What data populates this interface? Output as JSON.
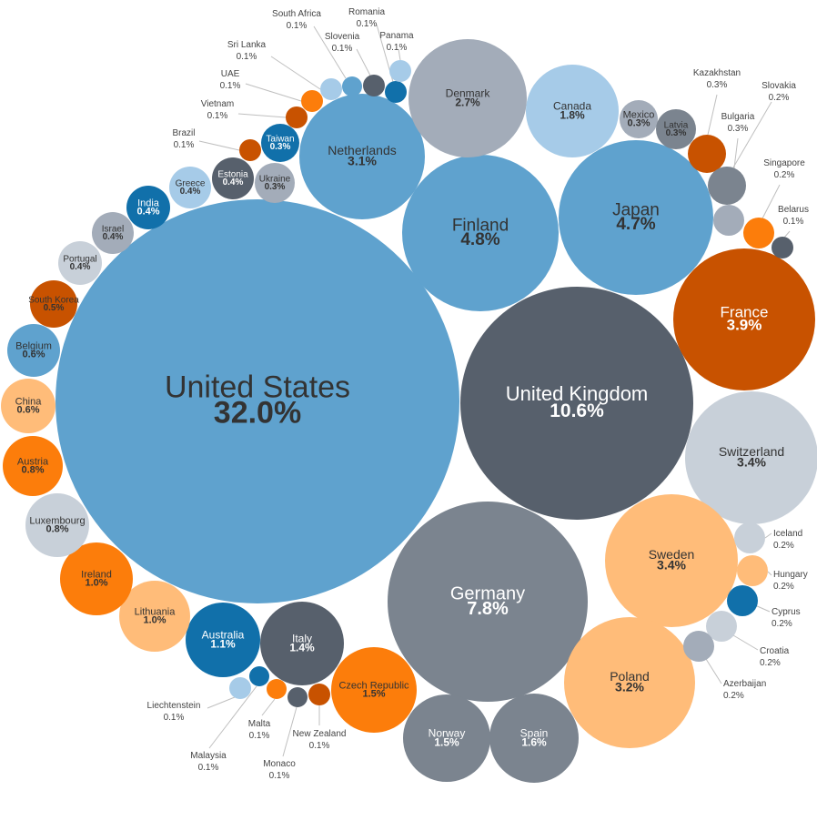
{
  "chart_data": {
    "type": "bubble",
    "title": "",
    "unit": "%",
    "palette": {
      "light_blue": "#a6cbe8",
      "mid_blue": "#5fa2ce",
      "dark_blue": "#1170aa",
      "slate": "#57606c",
      "gray": "#7b848f",
      "light_gray": "#c8d0d9",
      "mid_gray": "#a3acb9",
      "dark_orange": "#c85200",
      "orange": "#fc7d0b",
      "peach": "#ffbc79"
    },
    "bubbles": [
      {
        "name": "United States",
        "value": "32.0%",
        "color": "mid_blue"
      },
      {
        "name": "United Kingdom",
        "value": "10.6%",
        "color": "slate"
      },
      {
        "name": "Germany",
        "value": "7.8%",
        "color": "gray"
      },
      {
        "name": "Finland",
        "value": "4.8%",
        "color": "mid_blue"
      },
      {
        "name": "Japan",
        "value": "4.7%",
        "color": "mid_blue"
      },
      {
        "name": "France",
        "value": "3.9%",
        "color": "dark_orange"
      },
      {
        "name": "Switzerland",
        "value": "3.4%",
        "color": "light_gray"
      },
      {
        "name": "Sweden",
        "value": "3.4%",
        "color": "peach"
      },
      {
        "name": "Poland",
        "value": "3.2%",
        "color": "peach"
      },
      {
        "name": "Netherlands",
        "value": "3.1%",
        "color": "mid_blue"
      },
      {
        "name": "Denmark",
        "value": "2.7%",
        "color": "mid_gray"
      },
      {
        "name": "Canada",
        "value": "1.8%",
        "color": "light_blue"
      },
      {
        "name": "Spain",
        "value": "1.6%",
        "color": "gray"
      },
      {
        "name": "Norway",
        "value": "1.5%",
        "color": "gray"
      },
      {
        "name": "Czech Republic",
        "value": "1.5%",
        "color": "orange"
      },
      {
        "name": "Italy",
        "value": "1.4%",
        "color": "slate"
      },
      {
        "name": "Australia",
        "value": "1.1%",
        "color": "dark_blue"
      },
      {
        "name": "Lithuania",
        "value": "1.0%",
        "color": "peach"
      },
      {
        "name": "Ireland",
        "value": "1.0%",
        "color": "orange"
      },
      {
        "name": "Luxembourg",
        "value": "0.8%",
        "color": "light_gray"
      },
      {
        "name": "Austria",
        "value": "0.8%",
        "color": "orange"
      },
      {
        "name": "China",
        "value": "0.6%",
        "color": "peach"
      },
      {
        "name": "Belgium",
        "value": "0.6%",
        "color": "mid_blue"
      },
      {
        "name": "South Korea",
        "value": "0.5%",
        "color": "dark_orange"
      },
      {
        "name": "Portugal",
        "value": "0.4%",
        "color": "light_gray"
      },
      {
        "name": "Israel",
        "value": "0.4%",
        "color": "mid_gray"
      },
      {
        "name": "India",
        "value": "0.4%",
        "color": "dark_blue"
      },
      {
        "name": "Greece",
        "value": "0.4%",
        "color": "light_blue"
      },
      {
        "name": "Estonia",
        "value": "0.4%",
        "color": "slate"
      },
      {
        "name": "Ukraine",
        "value": "0.3%",
        "color": "mid_gray"
      },
      {
        "name": "Taiwan",
        "value": "0.3%",
        "color": "dark_blue"
      },
      {
        "name": "Mexico",
        "value": "0.3%",
        "color": "mid_gray"
      },
      {
        "name": "Latvia",
        "value": "0.3%",
        "color": "gray"
      }
    ],
    "small_bubbles": [
      {
        "name": "Brazil",
        "value": "0.1%",
        "color": "dark_orange"
      },
      {
        "name": "Vietnam",
        "value": "0.1%",
        "color": "dark_orange"
      },
      {
        "name": "UAE",
        "value": "0.1%",
        "color": "orange"
      },
      {
        "name": "Sri Lanka",
        "value": "0.1%",
        "color": "light_blue"
      },
      {
        "name": "South Africa",
        "value": "0.1%",
        "color": "mid_blue"
      },
      {
        "name": "Slovenia",
        "value": "0.1%",
        "color": "slate"
      },
      {
        "name": "Romania",
        "value": "0.1%",
        "color": "dark_blue"
      },
      {
        "name": "Panama",
        "value": "0.1%",
        "color": "light_blue"
      },
      {
        "name": "Kazakhstan",
        "value": "0.3%",
        "color": "dark_orange"
      },
      {
        "name": "Slovakia",
        "value": "0.2%",
        "color": "gray"
      },
      {
        "name": "Bulgaria",
        "value": "0.3%",
        "color": "mid_gray"
      },
      {
        "name": "Singapore",
        "value": "0.2%",
        "color": "orange"
      },
      {
        "name": "Belarus",
        "value": "0.1%",
        "color": "slate"
      },
      {
        "name": "Iceland",
        "value": "0.2%",
        "color": "light_gray"
      },
      {
        "name": "Hungary",
        "value": "0.2%",
        "color": "peach"
      },
      {
        "name": "Cyprus",
        "value": "0.2%",
        "color": "dark_blue"
      },
      {
        "name": "Croatia",
        "value": "0.2%",
        "color": "light_gray"
      },
      {
        "name": "Azerbaijan",
        "value": "0.2%",
        "color": "mid_gray"
      },
      {
        "name": "Liechtenstein",
        "value": "0.1%",
        "color": "light_blue"
      },
      {
        "name": "Malaysia",
        "value": "0.1%",
        "color": "dark_blue"
      },
      {
        "name": "Malta",
        "value": "0.1%",
        "color": "orange"
      },
      {
        "name": "Monaco",
        "value": "0.1%",
        "color": "slate"
      },
      {
        "name": "New Zealand",
        "value": "0.1%",
        "color": "dark_orange"
      }
    ]
  }
}
